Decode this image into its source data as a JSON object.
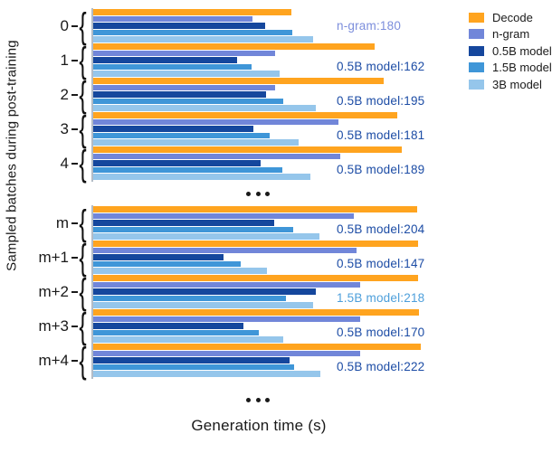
{
  "chart_data": {
    "type": "bar",
    "orientation": "horizontal",
    "title": "",
    "xlabel": "Generation time (s)",
    "ylabel": "Sampled batches during post-training",
    "xlim": [
      0,
      375
    ],
    "grid": false,
    "legend_position": "top-right",
    "separator_text": "...",
    "legend": [
      {
        "label": "Decode",
        "color": "#FFA41F"
      },
      {
        "label": "n-gram",
        "color": "#7186D9"
      },
      {
        "label": "0.5B model",
        "color": "#15479D"
      },
      {
        "label": "1.5B model",
        "color": "#3F96D8"
      },
      {
        "label": "3B model",
        "color": "#95C6EB"
      }
    ],
    "annotation_colors": {
      "n-gram": "#7186D9",
      "0.5B model": "#1C4CA5",
      "1.5B model": "#4D9FDB"
    },
    "groups": [
      {
        "label": "0",
        "values": [
          224,
          180,
          194,
          225,
          248
        ],
        "annotation": {
          "text": "n-gram:180",
          "color": "#7C8EDC"
        }
      },
      {
        "label": "1",
        "values": [
          318,
          205,
          162,
          179,
          210
        ],
        "annotation": {
          "text": "0.5B model:162",
          "color": "#1C4CA5"
        }
      },
      {
        "label": "2",
        "values": [
          328,
          205,
          195,
          215,
          251
        ],
        "annotation": {
          "text": "0.5B model:195",
          "color": "#1C4CA5"
        }
      },
      {
        "label": "3",
        "values": [
          343,
          277,
          181,
          199,
          232
        ],
        "annotation": {
          "text": "0.5B model:181",
          "color": "#1C4CA5"
        }
      },
      {
        "label": "4",
        "values": [
          348,
          279,
          189,
          214,
          245
        ],
        "annotation": {
          "text": "0.5B model:189",
          "color": "#1C4CA5"
        }
      },
      {
        "label": "m",
        "values": [
          366,
          294,
          204,
          226,
          255
        ],
        "annotation": {
          "text": "0.5B model:204",
          "color": "#1C4CA5"
        }
      },
      {
        "label": "m+1",
        "values": [
          367,
          297,
          147,
          167,
          196
        ],
        "annotation": {
          "text": "0.5B model:147",
          "color": "#1C4CA5"
        }
      },
      {
        "label": "m+2",
        "values": [
          367,
          301,
          251,
          218,
          248
        ],
        "annotation": {
          "text": "1.5B model:218",
          "color": "#4D9FDB"
        }
      },
      {
        "label": "m+3",
        "values": [
          368,
          301,
          170,
          187,
          215
        ],
        "annotation": {
          "text": "0.5B model:170",
          "color": "#1C4CA5"
        }
      },
      {
        "label": "m+4",
        "values": [
          370,
          301,
          222,
          227,
          256
        ],
        "annotation": {
          "text": "0.5B model:222",
          "color": "#1C4CA5"
        }
      }
    ]
  }
}
